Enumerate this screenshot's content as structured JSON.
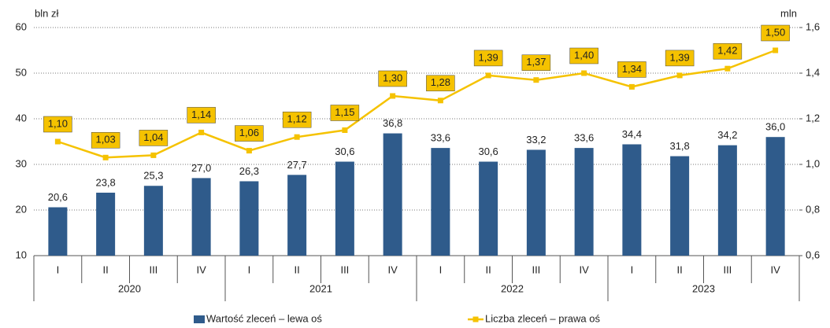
{
  "chart_data": {
    "type": "bar-line",
    "y_label": "bln zł",
    "y2_label": "mln",
    "categories": [
      "I",
      "II",
      "III",
      "IV",
      "I",
      "II",
      "III",
      "IV",
      "I",
      "II",
      "III",
      "IV",
      "I",
      "II",
      "III",
      "IV"
    ],
    "groups": [
      "2020",
      "2021",
      "2022",
      "2023"
    ],
    "series": [
      {
        "name": "Wartość zleceń – lewa oś",
        "type": "bar",
        "color": "#2f5b8b",
        "values": [
          20.6,
          23.8,
          25.3,
          27.0,
          26.3,
          27.7,
          30.6,
          36.8,
          33.6,
          30.6,
          33.2,
          33.6,
          34.4,
          31.8,
          34.2,
          36.0
        ],
        "value_labels": [
          "20,6",
          "23,8",
          "25,3",
          "27,0",
          "26,3",
          "27,7",
          "30,6",
          "36,8",
          "33,6",
          "30,6",
          "33,2",
          "33,6",
          "34,4",
          "31,8",
          "34,2",
          "36,0"
        ]
      },
      {
        "name": "Liczba zleceń – prawa oś",
        "type": "line",
        "axis": "y2",
        "color": "#f5c200",
        "values": [
          1.1,
          1.03,
          1.04,
          1.14,
          1.06,
          1.12,
          1.15,
          1.3,
          1.28,
          1.39,
          1.37,
          1.4,
          1.34,
          1.39,
          1.42,
          1.5
        ],
        "value_labels": [
          "1,10",
          "1,03",
          "1,04",
          "1,14",
          "1,06",
          "1,12",
          "1,15",
          "1,30",
          "1,28",
          "1,39",
          "1,37",
          "1,40",
          "1,34",
          "1,39",
          "1,42",
          "1,50"
        ]
      }
    ],
    "ylim": [
      10,
      60
    ],
    "yticks": [
      10,
      20,
      30,
      40,
      50,
      60
    ],
    "y2lim": [
      0.6,
      1.6
    ],
    "y2ticks": [
      {
        "value": 0.6,
        "label": "0,6"
      },
      {
        "value": 0.8,
        "label": "0,8"
      },
      {
        "value": 1.0,
        "label": "1,0"
      },
      {
        "value": 1.2,
        "label": "1,2"
      },
      {
        "value": 1.4,
        "label": "1,4"
      },
      {
        "value": 1.6,
        "label": "1,6"
      }
    ],
    "grid": true
  }
}
